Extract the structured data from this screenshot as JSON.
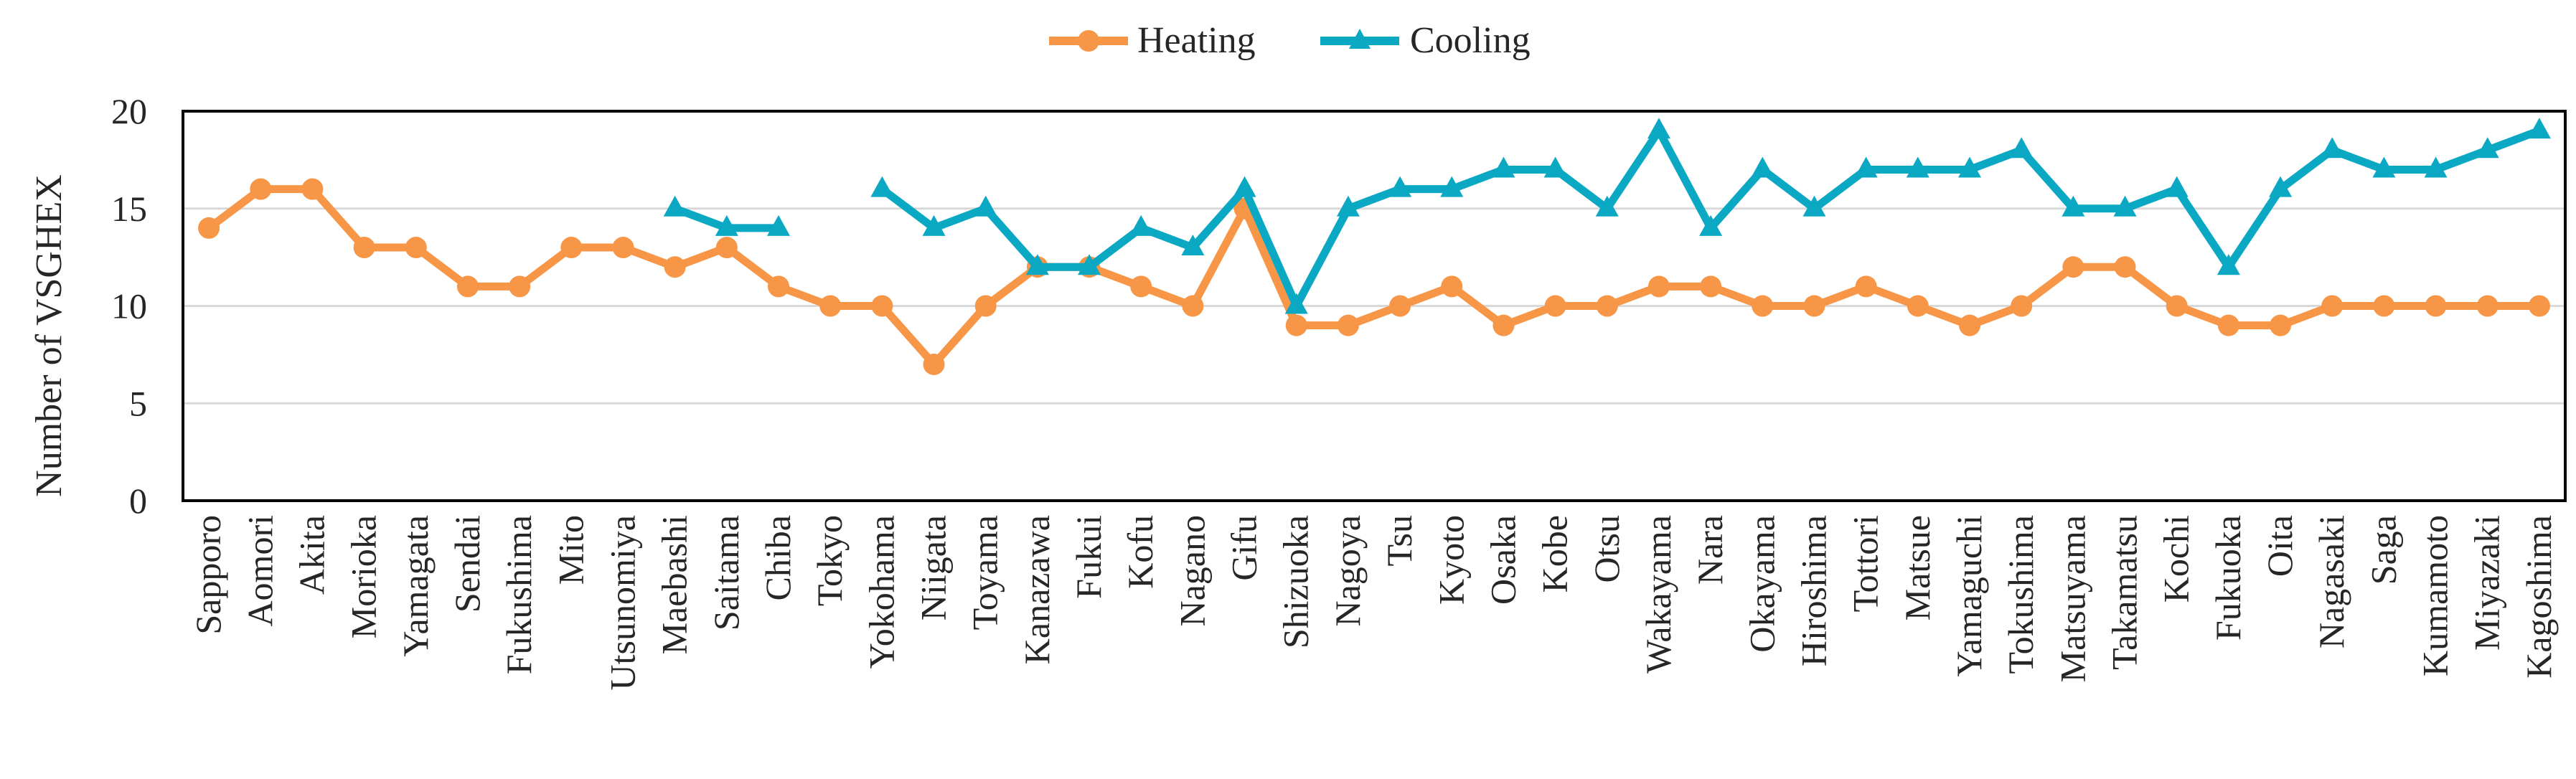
{
  "chart_data": {
    "type": "line",
    "title": "",
    "xlabel": "",
    "ylabel": "Number of VSGHEX",
    "ylim": [
      0,
      20
    ],
    "yticks": [
      0,
      5,
      10,
      15,
      20
    ],
    "grid": true,
    "legend_position": "top-center",
    "categories": [
      "Sapporo",
      "Aomori",
      "Akita",
      "Morioka",
      "Yamagata",
      "Sendai",
      "Fukushima",
      "Mito",
      "Utsunomiya",
      "Maebashi",
      "Saitama",
      "Chiba",
      "Tokyo",
      "Yokohama",
      "Niigata",
      "Toyama",
      "Kanazawa",
      "Fukui",
      "Kofu",
      "Nagano",
      "Gifu",
      "Shizuoka",
      "Nagoya",
      "Tsu",
      "Kyoto",
      "Osaka",
      "Kobe",
      "Otsu",
      "Wakayama",
      "Nara",
      "Okayama",
      "Hiroshima",
      "Tottori",
      "Matsue",
      "Yamaguchi",
      "Tokushima",
      "Matsuyama",
      "Takamatsu",
      "Kochi",
      "Fukuoka",
      "Oita",
      "Nagasaki",
      "Saga",
      "Kumamoto",
      "Miyazaki",
      "Kagoshima"
    ],
    "series": [
      {
        "name": "Heating",
        "color": "#F79646",
        "marker": "circle",
        "values": [
          14,
          16,
          16,
          13,
          13,
          11,
          11,
          13,
          13,
          12,
          13,
          11,
          10,
          10,
          7,
          10,
          12,
          12,
          11,
          10,
          15,
          9,
          9,
          10,
          11,
          9,
          10,
          10,
          11,
          11,
          10,
          10,
          11,
          10,
          9,
          10,
          12,
          12,
          10,
          9,
          9,
          10,
          10,
          10,
          10,
          10
        ]
      },
      {
        "name": "Cooling",
        "color": "#0BA8C4",
        "marker": "triangle",
        "values": [
          null,
          null,
          null,
          null,
          null,
          null,
          null,
          null,
          null,
          15,
          14,
          14,
          null,
          16,
          14,
          15,
          12,
          12,
          14,
          13,
          16,
          10,
          15,
          16,
          16,
          17,
          17,
          15,
          19,
          14,
          17,
          15,
          17,
          17,
          17,
          18,
          15,
          15,
          16,
          12,
          16,
          18,
          17,
          17,
          18,
          19
        ]
      }
    ]
  }
}
